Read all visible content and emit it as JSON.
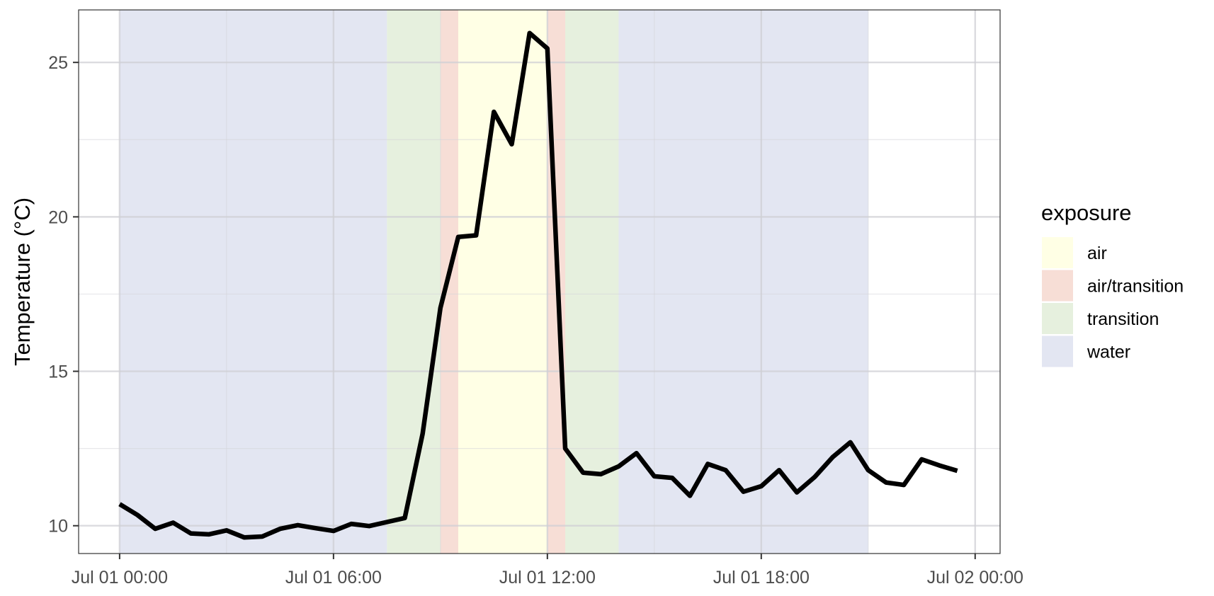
{
  "chart_data": {
    "type": "line",
    "title": "",
    "xlabel": "",
    "ylabel": "Temperature (°C)",
    "x_tick_labels": [
      "Jul 01 00:00",
      "Jul 01 06:00",
      "Jul 01 12:00",
      "Jul 01 18:00",
      "Jul 02 00:00"
    ],
    "y_tick_labels": [
      "10",
      "15",
      "20",
      "25"
    ],
    "y_ticks": [
      10,
      15,
      20,
      25
    ],
    "y_minor_ticks": [
      12.5,
      17.5,
      22.5
    ],
    "ylim": [
      9.1,
      26.7
    ],
    "xlim_hours": [
      -1.15,
      24.7
    ],
    "grid": true,
    "legend": {
      "title": "exposure",
      "placement": "right",
      "entries": [
        {
          "label": "air",
          "color": "#FFFFE5"
        },
        {
          "label": "air/transition",
          "color": "#F7DED6"
        },
        {
          "label": "transition",
          "color": "#E6F0DE"
        },
        {
          "label": "water",
          "color": "#E3E6F2"
        }
      ]
    },
    "exposure_periods": [
      {
        "exposure": "water",
        "start": "Jul 01 00:00",
        "end": "Jul 01 07:30"
      },
      {
        "exposure": "transition",
        "start": "Jul 01 07:30",
        "end": "Jul 01 09:00"
      },
      {
        "exposure": "air/transition",
        "start": "Jul 01 09:00",
        "end": "Jul 01 09:30"
      },
      {
        "exposure": "air",
        "start": "Jul 01 09:30",
        "end": "Jul 01 12:00"
      },
      {
        "exposure": "air/transition",
        "start": "Jul 01 12:00",
        "end": "Jul 01 12:30"
      },
      {
        "exposure": "transition",
        "start": "Jul 01 12:30",
        "end": "Jul 01 14:00"
      },
      {
        "exposure": "water",
        "start": "Jul 01 14:00",
        "end": "Jul 01 21:00"
      }
    ],
    "series": [
      {
        "line_color": "#000000",
        "x": [
          "Jul 01 00:00",
          "Jul 01 00:30",
          "Jul 01 01:00",
          "Jul 01 01:30",
          "Jul 01 02:00",
          "Jul 01 02:30",
          "Jul 01 03:00",
          "Jul 01 03:30",
          "Jul 01 04:00",
          "Jul 01 04:30",
          "Jul 01 05:00",
          "Jul 01 05:30",
          "Jul 01 06:00",
          "Jul 01 06:30",
          "Jul 01 07:00",
          "Jul 01 07:30",
          "Jul 01 08:00",
          "Jul 01 08:30",
          "Jul 01 09:00",
          "Jul 01 09:30",
          "Jul 01 10:00",
          "Jul 01 10:30",
          "Jul 01 11:00",
          "Jul 01 11:30",
          "Jul 01 12:00",
          "Jul 01 12:30",
          "Jul 01 13:00",
          "Jul 01 13:30",
          "Jul 01 14:00",
          "Jul 01 14:30",
          "Jul 01 15:00",
          "Jul 01 15:30",
          "Jul 01 16:00",
          "Jul 01 16:30",
          "Jul 01 17:00",
          "Jul 01 17:30",
          "Jul 01 18:00",
          "Jul 01 18:30",
          "Jul 01 19:00",
          "Jul 01 19:30",
          "Jul 01 20:00",
          "Jul 01 20:30",
          "Jul 01 21:00",
          "Jul 01 21:30",
          "Jul 01 22:00",
          "Jul 01 22:30",
          "Jul 01 23:00",
          "Jul 01 23:30"
        ],
        "values": [
          10.7,
          10.35,
          9.9,
          10.1,
          9.75,
          9.72,
          9.85,
          9.62,
          9.65,
          9.9,
          10.02,
          9.92,
          9.83,
          10.06,
          9.99,
          10.12,
          10.25,
          12.98,
          17.05,
          19.35,
          19.4,
          23.4,
          22.35,
          25.95,
          25.45,
          12.5,
          11.72,
          11.67,
          11.92,
          12.35,
          11.6,
          11.55,
          10.97,
          12.0,
          11.8,
          11.1,
          11.28,
          11.8,
          11.08,
          11.58,
          12.22,
          12.7,
          11.8,
          11.4,
          11.32,
          12.15,
          11.95,
          11.78
        ]
      }
    ]
  }
}
